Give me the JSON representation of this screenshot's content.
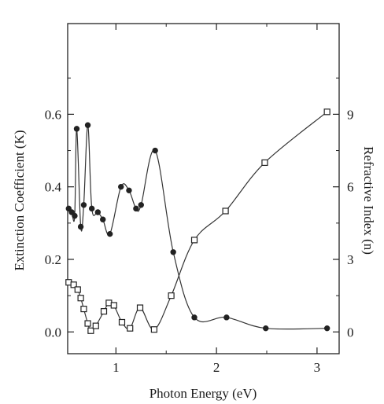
{
  "chart_data": {
    "type": "line",
    "title": "",
    "xlabel": "Photon Energy (eV)",
    "ylabel_left": "Extinction  Coefficient  (K)",
    "ylabel_right": "Refractive Index (n)",
    "xlim": [
      0.52,
      3.22
    ],
    "ylim_left": [
      -0.06,
      0.85
    ],
    "ylim_right": [
      -0.9,
      12.75
    ],
    "x_ticks": [
      1,
      2,
      3
    ],
    "x_tick_labels": [
      "1",
      "2",
      "3"
    ],
    "left_ticks": [
      0.0,
      0.2,
      0.4,
      0.6
    ],
    "left_tick_labels": [
      "0.0",
      "0.2",
      "0.4",
      "0.6"
    ],
    "right_ticks": [
      0,
      3,
      6,
      9
    ],
    "right_tick_labels": [
      "0",
      "3",
      "6",
      "9"
    ],
    "grid": false,
    "legend": "none",
    "series": [
      {
        "axis": "left",
        "marker": "filled-circle",
        "x": [
          0.53,
          0.56,
          0.59,
          0.61,
          0.65,
          0.68,
          0.72,
          0.76,
          0.82,
          0.87,
          0.94,
          1.05,
          1.13,
          1.2,
          1.25,
          1.39,
          1.57,
          1.78,
          2.1,
          2.49,
          3.1
        ],
        "values": [
          0.34,
          0.33,
          0.32,
          0.56,
          0.29,
          0.35,
          0.57,
          0.34,
          0.33,
          0.31,
          0.27,
          0.4,
          0.39,
          0.34,
          0.35,
          0.5,
          0.22,
          0.04,
          0.04,
          0.01,
          0.01
        ]
      },
      {
        "axis": "right",
        "marker": "open-square",
        "x": [
          0.53,
          0.58,
          0.62,
          0.65,
          0.68,
          0.72,
          0.75,
          0.8,
          0.88,
          0.93,
          0.98,
          1.06,
          1.14,
          1.24,
          1.38,
          1.55,
          1.78,
          2.09,
          2.48,
          3.1
        ],
        "values": [
          2.05,
          1.95,
          1.75,
          1.4,
          0.95,
          0.35,
          0.05,
          0.25,
          0.85,
          1.2,
          1.1,
          0.4,
          0.15,
          1.0,
          0.1,
          1.5,
          3.8,
          5.0,
          7.0,
          9.1
        ]
      }
    ]
  }
}
